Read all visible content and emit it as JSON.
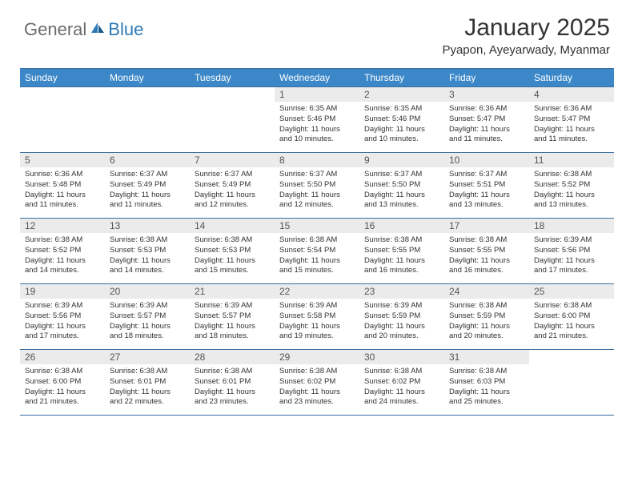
{
  "brand": {
    "part1": "General",
    "part2": "Blue"
  },
  "title": "January 2025",
  "location": "Pyapon, Ayeyarwady, Myanmar",
  "colors": {
    "header_bg": "#3b87c8",
    "header_border": "#3b6fa0",
    "daynum_bg": "#ebebeb",
    "text": "#333333",
    "brand_gray": "#6b6b6b",
    "brand_blue": "#2c7ab8"
  },
  "day_headers": [
    "Sunday",
    "Monday",
    "Tuesday",
    "Wednesday",
    "Thursday",
    "Friday",
    "Saturday"
  ],
  "first_weekday_index": 3,
  "days": [
    {
      "n": 1,
      "sunrise": "6:35 AM",
      "sunset": "5:46 PM",
      "daylight": "11 hours and 10 minutes."
    },
    {
      "n": 2,
      "sunrise": "6:35 AM",
      "sunset": "5:46 PM",
      "daylight": "11 hours and 10 minutes."
    },
    {
      "n": 3,
      "sunrise": "6:36 AM",
      "sunset": "5:47 PM",
      "daylight": "11 hours and 11 minutes."
    },
    {
      "n": 4,
      "sunrise": "6:36 AM",
      "sunset": "5:47 PM",
      "daylight": "11 hours and 11 minutes."
    },
    {
      "n": 5,
      "sunrise": "6:36 AM",
      "sunset": "5:48 PM",
      "daylight": "11 hours and 11 minutes."
    },
    {
      "n": 6,
      "sunrise": "6:37 AM",
      "sunset": "5:49 PM",
      "daylight": "11 hours and 11 minutes."
    },
    {
      "n": 7,
      "sunrise": "6:37 AM",
      "sunset": "5:49 PM",
      "daylight": "11 hours and 12 minutes."
    },
    {
      "n": 8,
      "sunrise": "6:37 AM",
      "sunset": "5:50 PM",
      "daylight": "11 hours and 12 minutes."
    },
    {
      "n": 9,
      "sunrise": "6:37 AM",
      "sunset": "5:50 PM",
      "daylight": "11 hours and 13 minutes."
    },
    {
      "n": 10,
      "sunrise": "6:37 AM",
      "sunset": "5:51 PM",
      "daylight": "11 hours and 13 minutes."
    },
    {
      "n": 11,
      "sunrise": "6:38 AM",
      "sunset": "5:52 PM",
      "daylight": "11 hours and 13 minutes."
    },
    {
      "n": 12,
      "sunrise": "6:38 AM",
      "sunset": "5:52 PM",
      "daylight": "11 hours and 14 minutes."
    },
    {
      "n": 13,
      "sunrise": "6:38 AM",
      "sunset": "5:53 PM",
      "daylight": "11 hours and 14 minutes."
    },
    {
      "n": 14,
      "sunrise": "6:38 AM",
      "sunset": "5:53 PM",
      "daylight": "11 hours and 15 minutes."
    },
    {
      "n": 15,
      "sunrise": "6:38 AM",
      "sunset": "5:54 PM",
      "daylight": "11 hours and 15 minutes."
    },
    {
      "n": 16,
      "sunrise": "6:38 AM",
      "sunset": "5:55 PM",
      "daylight": "11 hours and 16 minutes."
    },
    {
      "n": 17,
      "sunrise": "6:38 AM",
      "sunset": "5:55 PM",
      "daylight": "11 hours and 16 minutes."
    },
    {
      "n": 18,
      "sunrise": "6:39 AM",
      "sunset": "5:56 PM",
      "daylight": "11 hours and 17 minutes."
    },
    {
      "n": 19,
      "sunrise": "6:39 AM",
      "sunset": "5:56 PM",
      "daylight": "11 hours and 17 minutes."
    },
    {
      "n": 20,
      "sunrise": "6:39 AM",
      "sunset": "5:57 PM",
      "daylight": "11 hours and 18 minutes."
    },
    {
      "n": 21,
      "sunrise": "6:39 AM",
      "sunset": "5:57 PM",
      "daylight": "11 hours and 18 minutes."
    },
    {
      "n": 22,
      "sunrise": "6:39 AM",
      "sunset": "5:58 PM",
      "daylight": "11 hours and 19 minutes."
    },
    {
      "n": 23,
      "sunrise": "6:39 AM",
      "sunset": "5:59 PM",
      "daylight": "11 hours and 20 minutes."
    },
    {
      "n": 24,
      "sunrise": "6:38 AM",
      "sunset": "5:59 PM",
      "daylight": "11 hours and 20 minutes."
    },
    {
      "n": 25,
      "sunrise": "6:38 AM",
      "sunset": "6:00 PM",
      "daylight": "11 hours and 21 minutes."
    },
    {
      "n": 26,
      "sunrise": "6:38 AM",
      "sunset": "6:00 PM",
      "daylight": "11 hours and 21 minutes."
    },
    {
      "n": 27,
      "sunrise": "6:38 AM",
      "sunset": "6:01 PM",
      "daylight": "11 hours and 22 minutes."
    },
    {
      "n": 28,
      "sunrise": "6:38 AM",
      "sunset": "6:01 PM",
      "daylight": "11 hours and 23 minutes."
    },
    {
      "n": 29,
      "sunrise": "6:38 AM",
      "sunset": "6:02 PM",
      "daylight": "11 hours and 23 minutes."
    },
    {
      "n": 30,
      "sunrise": "6:38 AM",
      "sunset": "6:02 PM",
      "daylight": "11 hours and 24 minutes."
    },
    {
      "n": 31,
      "sunrise": "6:38 AM",
      "sunset": "6:03 PM",
      "daylight": "11 hours and 25 minutes."
    }
  ],
  "labels": {
    "sunrise": "Sunrise:",
    "sunset": "Sunset:",
    "daylight": "Daylight:"
  }
}
